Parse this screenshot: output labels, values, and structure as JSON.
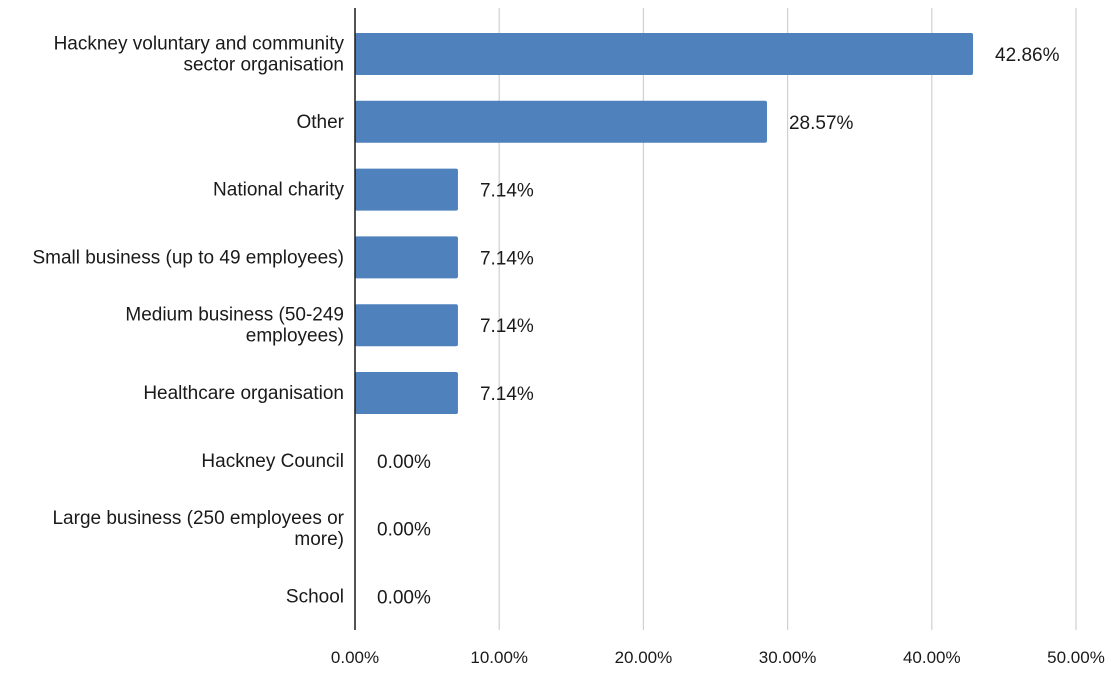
{
  "chart_data": {
    "type": "bar",
    "orientation": "horizontal",
    "categories": [
      [
        "Hackney voluntary and community",
        "sector organisation"
      ],
      [
        "Other"
      ],
      [
        "National charity"
      ],
      [
        "Small business (up to 49 employees)"
      ],
      [
        "Medium business (50-249",
        "employees)"
      ],
      [
        "Healthcare organisation"
      ],
      [
        "Hackney Council"
      ],
      [
        "Large business (250 employees or",
        "more)"
      ],
      [
        "School"
      ]
    ],
    "values": [
      42.86,
      28.57,
      7.14,
      7.14,
      7.14,
      7.14,
      0.0,
      0.0,
      0.0
    ],
    "data_labels": [
      "42.86%",
      "28.57%",
      "7.14%",
      "7.14%",
      "7.14%",
      "7.14%",
      "0.00%",
      "0.00%",
      "0.00%"
    ],
    "xlim": [
      0,
      50
    ],
    "x_ticks": [
      0,
      10,
      20,
      30,
      40,
      50
    ],
    "x_tick_labels": [
      "0.00%",
      "10.00%",
      "20.00%",
      "30.00%",
      "40.00%",
      "50.00%"
    ],
    "title": "",
    "xlabel": "",
    "ylabel": "",
    "grid": "vertical",
    "legend": "none",
    "bar_color": "#4f81bd",
    "grid_color": "#d0d0d0",
    "axis_color": "#1a1a1a"
  }
}
